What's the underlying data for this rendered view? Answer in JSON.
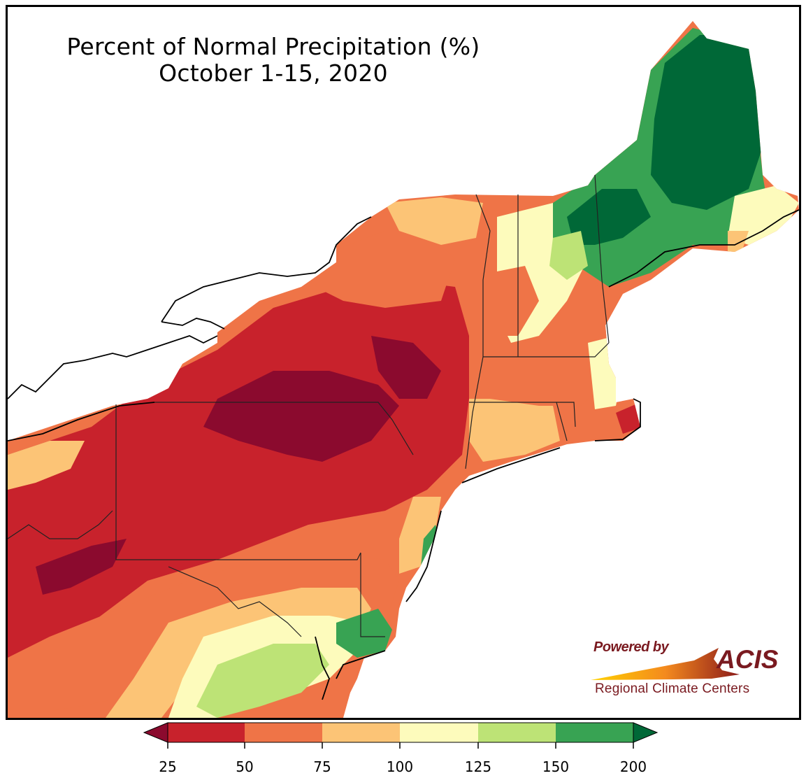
{
  "title": {
    "line1": "Percent of Normal Precipitation (%)",
    "line2": "October 1-15, 2020"
  },
  "logo": {
    "powered": "Powered by",
    "name": "ACIS",
    "subtitle": "Regional Climate Centers"
  },
  "legend": {
    "ticks": [
      "25",
      "50",
      "75",
      "100",
      "125",
      "150",
      "200"
    ],
    "bins": [
      {
        "range": "<25",
        "color": "#8b0a2e"
      },
      {
        "range": "25-50",
        "color": "#c8222c"
      },
      {
        "range": "50-75",
        "color": "#ef7447"
      },
      {
        "range": "75-100",
        "color": "#fcc476"
      },
      {
        "range": "100-125",
        "color": "#fdfbbc"
      },
      {
        "range": "125-150",
        "color": "#bde376"
      },
      {
        "range": "150-200",
        "color": "#38a353"
      },
      {
        "range": ">200",
        "color": "#006837"
      }
    ]
  },
  "colors": {
    "deep_red": "#8b0a2e",
    "red": "#c8222c",
    "orange": "#ef7447",
    "light_orange": "#fcc476",
    "pale_yellow": "#fdfbbc",
    "light_green": "#bde376",
    "green": "#38a353",
    "dark_green": "#006837",
    "logo_text": "#7a1a20"
  }
}
